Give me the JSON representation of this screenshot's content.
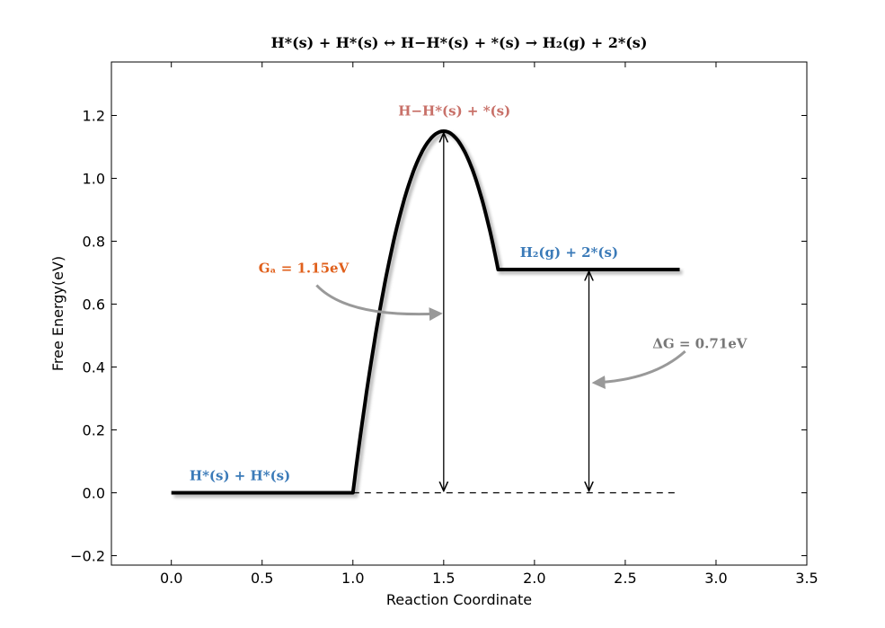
{
  "chart_data": {
    "type": "line",
    "title": "H*(s) + H*(s) ↔ H−H*(s) + *(s) → H₂(g) + 2*(s)",
    "xlabel": "Reaction Coordinate",
    "ylabel": "Free Energy(eV)",
    "xlim": [
      -0.33,
      3.5
    ],
    "ylim": [
      -0.23,
      1.37
    ],
    "xticks": [
      0.0,
      0.5,
      1.0,
      1.5,
      2.0,
      2.5,
      3.0,
      3.5
    ],
    "yticks": [
      -0.2,
      0.0,
      0.2,
      0.4,
      0.6,
      0.8,
      1.0,
      1.2
    ],
    "xtick_labels": [
      "0.0",
      "0.5",
      "1.0",
      "1.5",
      "2.0",
      "2.5",
      "3.0",
      "3.5"
    ],
    "ytick_labels": [
      "−0.2",
      "0.0",
      "0.2",
      "0.4",
      "0.6",
      "0.8",
      "1.0",
      "1.2"
    ],
    "grid": false,
    "series": [
      {
        "color": "#000000",
        "segments": {
          "initial_state": {
            "x": [
              0.0,
              1.0
            ],
            "y": [
              0.0,
              0.0
            ]
          },
          "barrier": {
            "x_start": 1.0,
            "x_peak": 1.5,
            "x_end": 1.8,
            "y_start": 0.0,
            "y_peak": 1.15,
            "y_end": 0.71
          },
          "final_state": {
            "x": [
              1.8,
              2.8
            ],
            "y": [
              0.71,
              0.71
            ]
          }
        }
      }
    ],
    "reference_line": {
      "x": [
        1.0,
        2.8
      ],
      "y": 0.0,
      "style": "dashed"
    },
    "arrows": [
      {
        "name": "activation-energy",
        "x": 1.5,
        "y_from": 0.0,
        "y_to": 1.15
      },
      {
        "name": "reaction-energy",
        "x": 2.3,
        "y_from": 0.0,
        "y_to": 0.71
      }
    ],
    "annotations": [
      {
        "name": "state-initial",
        "text": "H*(s) + H*(s)",
        "x": 0.1,
        "y": 0.04,
        "color": "#3a7ab8"
      },
      {
        "name": "state-transition",
        "text": "H−H*(s) + *(s)",
        "x": 1.25,
        "y": 1.2,
        "color": "#c87068"
      },
      {
        "name": "state-final",
        "text": "H₂(g) + 2*(s)",
        "x": 1.92,
        "y": 0.75,
        "color": "#3a7ab8"
      },
      {
        "name": "activation-energy-label",
        "text": "Gₐ = 1.15eV",
        "x": 0.48,
        "y": 0.7,
        "color": "#e0601c"
      },
      {
        "name": "reaction-energy-label",
        "text": "ΔG = 0.71eV",
        "x": 2.65,
        "y": 0.46,
        "color": "#777777"
      }
    ],
    "curved_pointers": [
      {
        "name": "activation-pointer",
        "color": "#999999",
        "from": [
          0.8,
          0.66
        ],
        "to": [
          1.48,
          0.57
        ]
      },
      {
        "name": "reaction-pointer",
        "color": "#999999",
        "from": [
          2.83,
          0.45
        ],
        "to": [
          2.33,
          0.35
        ]
      }
    ]
  }
}
